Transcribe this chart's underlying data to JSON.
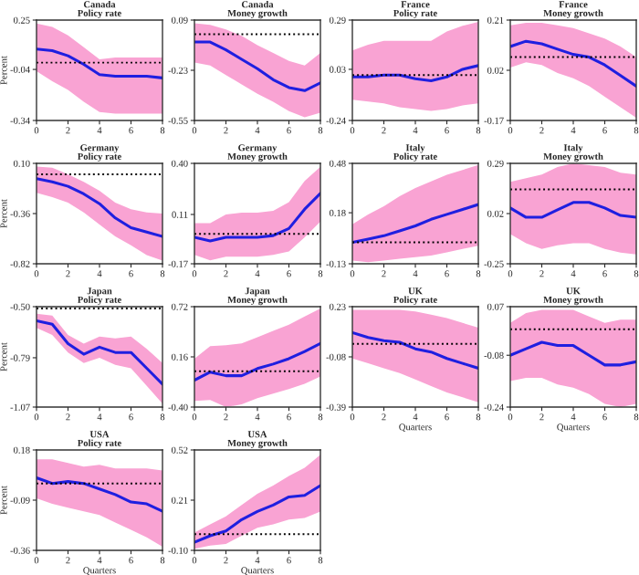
{
  "chart_data": [
    {
      "type": "line",
      "title": "Canada\nPolicy rate",
      "ylabel": "Percent",
      "x": [
        0,
        1,
        2,
        3,
        4,
        5,
        6,
        7,
        8
      ],
      "xlim": [
        0,
        8
      ],
      "xticks": [
        0,
        2,
        4,
        6,
        8
      ],
      "ylim": [
        -0.34,
        0.25
      ],
      "yticks": [
        -0.34,
        -0.04,
        0.25
      ],
      "ref_lines": [
        {
          "axis": "y",
          "value": 0,
          "line_style": "dotted",
          "color": "#000000"
        }
      ],
      "series": [
        {
          "color": "#1f1fe0",
          "values": [
            0.08,
            0.07,
            0.04,
            -0.01,
            -0.07,
            -0.08,
            -0.08,
            -0.08,
            -0.09
          ],
          "lower": [
            -0.05,
            -0.11,
            -0.16,
            -0.23,
            -0.29,
            -0.3,
            -0.3,
            -0.3,
            -0.3
          ],
          "upper": [
            0.23,
            0.21,
            0.16,
            0.09,
            0.02,
            0.03,
            0.03,
            0.03,
            0.03
          ]
        }
      ]
    },
    {
      "type": "line",
      "title": "Canada\nMoney growth",
      "x": [
        0,
        1,
        2,
        3,
        4,
        5,
        6,
        7,
        8
      ],
      "xlim": [
        0,
        8
      ],
      "xticks": [
        0,
        2,
        4,
        6,
        8
      ],
      "ylim": [
        -0.55,
        0.09
      ],
      "yticks": [
        -0.55,
        -0.23,
        0.09
      ],
      "ref_lines": [
        {
          "axis": "y",
          "value": 0,
          "line_style": "dotted",
          "color": "#000000"
        }
      ],
      "series": [
        {
          "color": "#1f1fe0",
          "values": [
            -0.05,
            -0.05,
            -0.1,
            -0.16,
            -0.22,
            -0.29,
            -0.34,
            -0.36,
            -0.31
          ],
          "lower": [
            -0.18,
            -0.2,
            -0.26,
            -0.32,
            -0.38,
            -0.43,
            -0.49,
            -0.53,
            -0.5
          ],
          "upper": [
            0.07,
            0.06,
            0.03,
            -0.01,
            -0.07,
            -0.12,
            -0.17,
            -0.2,
            -0.12
          ]
        }
      ]
    },
    {
      "type": "line",
      "title": "France\nPolicy rate",
      "x": [
        0,
        1,
        2,
        3,
        4,
        5,
        6,
        7,
        8
      ],
      "xlim": [
        0,
        8
      ],
      "xticks": [
        0,
        2,
        4,
        6,
        8
      ],
      "ylim": [
        -0.24,
        0.29
      ],
      "yticks": [
        -0.24,
        0.03,
        0.29
      ],
      "ref_lines": [
        {
          "axis": "y",
          "value": 0,
          "line_style": "dotted",
          "color": "#000000"
        }
      ],
      "series": [
        {
          "color": "#1f1fe0",
          "values": [
            -0.01,
            -0.01,
            0.0,
            0.0,
            -0.02,
            -0.03,
            -0.01,
            0.03,
            0.05
          ],
          "lower": [
            -0.13,
            -0.14,
            -0.15,
            -0.17,
            -0.18,
            -0.19,
            -0.18,
            -0.16,
            -0.15
          ],
          "upper": [
            0.13,
            0.16,
            0.18,
            0.18,
            0.18,
            0.18,
            0.23,
            0.26,
            0.28
          ]
        }
      ]
    },
    {
      "type": "line",
      "title": "France\nMoney growth",
      "x": [
        0,
        1,
        2,
        3,
        4,
        5,
        6,
        7,
        8
      ],
      "xlim": [
        0,
        8
      ],
      "xticks": [
        0,
        2,
        4,
        6,
        8
      ],
      "ylim": [
        -0.17,
        0.21
      ],
      "yticks": [
        -0.17,
        0.02,
        0.21
      ],
      "ref_lines": [
        {
          "axis": "y",
          "value": 0.07,
          "line_style": "dotted",
          "color": "#000000"
        }
      ],
      "series": [
        {
          "color": "#1f1fe0",
          "values": [
            0.11,
            0.13,
            0.12,
            0.1,
            0.08,
            0.07,
            0.04,
            0.0,
            -0.04
          ],
          "lower": [
            0.03,
            0.05,
            0.04,
            0.01,
            -0.01,
            -0.04,
            -0.08,
            -0.12,
            -0.16
          ],
          "upper": [
            0.19,
            0.2,
            0.2,
            0.19,
            0.18,
            0.16,
            0.14,
            0.11,
            0.07
          ]
        }
      ]
    },
    {
      "type": "line",
      "title": "Germany\nPolicy rate",
      "ylabel": "Percent",
      "x": [
        0,
        1,
        2,
        3,
        4,
        5,
        6,
        7,
        8
      ],
      "xlim": [
        0,
        8
      ],
      "xticks": [
        0,
        2,
        4,
        6,
        8
      ],
      "ylim": [
        -0.82,
        0.1
      ],
      "yticks": [
        -0.82,
        -0.36,
        {
          "value": 0.1,
          "label": "0.10"
        }
      ],
      "ref_lines": [
        {
          "axis": "y",
          "value": 0,
          "line_style": "dotted",
          "color": "#000000"
        }
      ],
      "series": [
        {
          "color": "#1f1fe0",
          "values": [
            -0.04,
            -0.07,
            -0.11,
            -0.18,
            -0.27,
            -0.4,
            -0.49,
            -0.53,
            -0.57
          ],
          "lower": [
            -0.17,
            -0.21,
            -0.26,
            -0.35,
            -0.46,
            -0.57,
            -0.65,
            -0.74,
            -0.79
          ],
          "upper": [
            0.07,
            0.06,
            0.0,
            -0.07,
            -0.15,
            -0.26,
            -0.32,
            -0.35,
            -0.36
          ]
        }
      ]
    },
    {
      "type": "line",
      "title": "Germany\nMoney growth",
      "x": [
        0,
        1,
        2,
        3,
        4,
        5,
        6,
        7,
        8
      ],
      "xlim": [
        0,
        8
      ],
      "xticks": [
        0,
        2,
        4,
        6,
        8
      ],
      "ylim": [
        -0.17,
        0.4
      ],
      "yticks": [
        -0.17,
        0.11,
        {
          "value": 0.4,
          "label": "0.40"
        }
      ],
      "ref_lines": [
        {
          "axis": "y",
          "value": 0,
          "line_style": "dotted",
          "color": "#000000"
        }
      ],
      "series": [
        {
          "color": "#1f1fe0",
          "values": [
            -0.02,
            -0.04,
            -0.02,
            -0.02,
            -0.02,
            -0.01,
            0.03,
            0.14,
            0.23
          ],
          "lower": [
            -0.12,
            -0.15,
            -0.13,
            -0.13,
            -0.13,
            -0.12,
            -0.1,
            -0.02,
            0.07
          ],
          "upper": [
            0.06,
            0.06,
            0.11,
            0.12,
            0.12,
            0.13,
            0.18,
            0.3,
            0.38
          ]
        }
      ]
    },
    {
      "type": "line",
      "title": "Italy\nPolicy rate",
      "x": [
        0,
        1,
        2,
        3,
        4,
        5,
        6,
        7,
        8
      ],
      "xlim": [
        0,
        8
      ],
      "xticks": [
        0,
        2,
        4,
        6,
        8
      ],
      "ylim": [
        -0.13,
        0.48
      ],
      "yticks": [
        -0.13,
        0.18,
        0.48
      ],
      "ref_lines": [
        {
          "axis": "y",
          "value": 0,
          "line_style": "dotted",
          "color": "#000000"
        }
      ],
      "series": [
        {
          "color": "#1f1fe0",
          "values": [
            0.0,
            0.02,
            0.04,
            0.07,
            0.1,
            0.14,
            0.17,
            0.2,
            0.23
          ],
          "lower": [
            -0.11,
            -0.12,
            -0.11,
            -0.1,
            -0.09,
            -0.08,
            -0.06,
            -0.04,
            -0.02
          ],
          "upper": [
            0.11,
            0.17,
            0.22,
            0.28,
            0.33,
            0.37,
            0.41,
            0.44,
            0.47
          ]
        }
      ]
    },
    {
      "type": "line",
      "title": "Italy\nMoney growth",
      "x": [
        0,
        1,
        2,
        3,
        4,
        5,
        6,
        7,
        8
      ],
      "xlim": [
        0,
        8
      ],
      "xticks": [
        0,
        2,
        4,
        6,
        8
      ],
      "ylim": [
        -0.25,
        0.29
      ],
      "yticks": [
        -0.25,
        0.02,
        0.29
      ],
      "ref_lines": [
        {
          "axis": "y",
          "value": 0.15,
          "line_style": "dotted",
          "color": "#000000"
        }
      ],
      "series": [
        {
          "color": "#1f1fe0",
          "values": [
            0.05,
            0.0,
            0.0,
            0.04,
            0.08,
            0.08,
            0.05,
            0.01,
            0.0
          ],
          "lower": [
            -0.09,
            -0.14,
            -0.17,
            -0.15,
            -0.14,
            -0.14,
            -0.17,
            -0.19,
            -0.2
          ],
          "upper": [
            0.19,
            0.21,
            0.23,
            0.27,
            0.29,
            0.28,
            0.27,
            0.24,
            0.23
          ]
        }
      ]
    },
    {
      "type": "line",
      "title": "Japan\nPolicy rate",
      "ylabel": "Percent",
      "x": [
        0,
        1,
        2,
        3,
        4,
        5,
        6,
        7,
        8
      ],
      "xlim": [
        0,
        8
      ],
      "xticks": [
        0,
        2,
        4,
        6,
        8
      ],
      "ylim": [
        -1.07,
        -0.5
      ],
      "yticks": [
        -1.07,
        -0.79,
        {
          "value": -0.5,
          "label": "-0.50"
        }
      ],
      "ref_lines": [
        {
          "axis": "y",
          "value": -0.51,
          "line_style": "dotted",
          "color": "#000000"
        }
      ],
      "series": [
        {
          "color": "#1f1fe0",
          "values": [
            -0.58,
            -0.6,
            -0.71,
            -0.77,
            -0.73,
            -0.76,
            -0.76,
            -0.85,
            -0.94
          ],
          "lower": [
            -0.62,
            -0.66,
            -0.76,
            -0.82,
            -0.79,
            -0.83,
            -0.85,
            -0.95,
            -1.05
          ],
          "upper": [
            -0.54,
            -0.55,
            -0.66,
            -0.71,
            -0.67,
            -0.68,
            -0.67,
            -0.74,
            -0.82
          ]
        }
      ]
    },
    {
      "type": "line",
      "title": "Japan\nMoney growth",
      "x": [
        0,
        1,
        2,
        3,
        4,
        5,
        6,
        7,
        8
      ],
      "xlim": [
        0,
        8
      ],
      "xticks": [
        0,
        2,
        4,
        6,
        8
      ],
      "ylim": [
        -0.4,
        0.72
      ],
      "yticks": [
        {
          "value": -0.4,
          "label": "-0.40"
        },
        0.16,
        0.72
      ],
      "ref_lines": [
        {
          "axis": "y",
          "value": 0,
          "line_style": "dotted",
          "color": "#000000"
        }
      ],
      "series": [
        {
          "color": "#1f1fe0",
          "values": [
            -0.1,
            -0.01,
            -0.05,
            -0.05,
            0.03,
            0.08,
            0.14,
            0.22,
            0.31
          ],
          "lower": [
            -0.33,
            -0.32,
            -0.4,
            -0.37,
            -0.3,
            -0.25,
            -0.2,
            -0.14,
            -0.06
          ],
          "upper": [
            0.14,
            0.28,
            0.29,
            0.31,
            0.38,
            0.45,
            0.52,
            0.61,
            0.7
          ]
        }
      ]
    },
    {
      "type": "line",
      "title": "UK\nPolicy rate",
      "xlabel": "Quarters",
      "x": [
        0,
        1,
        2,
        3,
        4,
        5,
        6,
        7,
        8
      ],
      "xlim": [
        0,
        8
      ],
      "xticks": [
        0,
        2,
        4,
        6,
        8
      ],
      "ylim": [
        -0.39,
        0.23
      ],
      "yticks": [
        -0.39,
        -0.08,
        0.23
      ],
      "ref_lines": [
        {
          "axis": "y",
          "value": 0,
          "line_style": "dotted",
          "color": "#000000"
        }
      ],
      "series": [
        {
          "color": "#1f1fe0",
          "values": [
            0.07,
            0.04,
            0.02,
            0.01,
            -0.03,
            -0.05,
            -0.09,
            -0.12,
            -0.15
          ],
          "lower": [
            -0.09,
            -0.12,
            -0.15,
            -0.18,
            -0.22,
            -0.26,
            -0.3,
            -0.33,
            -0.36
          ],
          "upper": [
            0.21,
            0.21,
            0.21,
            0.21,
            0.2,
            0.18,
            0.16,
            0.13,
            0.1
          ]
        }
      ]
    },
    {
      "type": "line",
      "title": "UK\nMoney growth",
      "xlabel": "Quarters",
      "x": [
        0,
        1,
        2,
        3,
        4,
        5,
        6,
        7,
        8
      ],
      "xlim": [
        0,
        8
      ],
      "xticks": [
        0,
        2,
        4,
        6,
        8
      ],
      "ylim": [
        -0.24,
        0.07
      ],
      "yticks": [
        -0.24,
        -0.08,
        0.07
      ],
      "ref_lines": [
        {
          "axis": "y",
          "value": 0,
          "line_style": "dotted",
          "color": "#000000"
        }
      ],
      "series": [
        {
          "color": "#1f1fe0",
          "values": [
            -0.08,
            -0.06,
            -0.04,
            -0.05,
            -0.05,
            -0.08,
            -0.11,
            -0.11,
            -0.1
          ],
          "lower": [
            -0.16,
            -0.15,
            -0.15,
            -0.17,
            -0.18,
            -0.2,
            -0.23,
            -0.24,
            -0.23
          ],
          "upper": [
            0.02,
            0.05,
            0.06,
            0.06,
            0.06,
            0.04,
            0.02,
            0.03,
            0.03
          ]
        }
      ]
    },
    {
      "type": "line",
      "title": "USA\nPolicy rate",
      "xlabel": "Quarters",
      "ylabel": "Percent",
      "x": [
        0,
        1,
        2,
        3,
        4,
        5,
        6,
        7,
        8
      ],
      "xlim": [
        0,
        8
      ],
      "xticks": [
        0,
        2,
        4,
        6,
        8
      ],
      "ylim": [
        -0.36,
        0.18
      ],
      "yticks": [
        -0.36,
        -0.09,
        0.18
      ],
      "ref_lines": [
        {
          "axis": "y",
          "value": 0,
          "line_style": "dotted",
          "color": "#000000"
        }
      ],
      "series": [
        {
          "color": "#1f1fe0",
          "values": [
            0.03,
            0.0,
            0.01,
            0.0,
            -0.03,
            -0.06,
            -0.1,
            -0.11,
            -0.15
          ],
          "lower": [
            -0.08,
            -0.11,
            -0.13,
            -0.15,
            -0.17,
            -0.21,
            -0.25,
            -0.29,
            -0.34
          ],
          "upper": [
            0.13,
            0.13,
            0.11,
            0.09,
            0.1,
            0.08,
            0.08,
            0.08,
            0.07
          ]
        }
      ]
    },
    {
      "type": "line",
      "title": "USA\nMoney growth",
      "xlabel": "Quarters",
      "x": [
        0,
        1,
        2,
        3,
        4,
        5,
        6,
        7,
        8
      ],
      "xlim": [
        0,
        8
      ],
      "xticks": [
        0,
        2,
        4,
        6,
        8
      ],
      "ylim": [
        -0.1,
        0.52
      ],
      "yticks": [
        {
          "value": -0.1,
          "label": "-0.10"
        },
        0.21,
        0.52
      ],
      "ref_lines": [
        {
          "axis": "y",
          "value": 0,
          "line_style": "dotted",
          "color": "#000000"
        }
      ],
      "series": [
        {
          "color": "#1f1fe0",
          "values": [
            -0.05,
            -0.01,
            0.02,
            0.09,
            0.14,
            0.18,
            0.23,
            0.24,
            0.3
          ],
          "lower": [
            -0.09,
            -0.07,
            -0.06,
            -0.01,
            0.04,
            0.06,
            0.09,
            0.1,
            0.14
          ],
          "upper": [
            0.01,
            0.06,
            0.11,
            0.18,
            0.25,
            0.3,
            0.36,
            0.41,
            0.49
          ]
        }
      ]
    }
  ]
}
